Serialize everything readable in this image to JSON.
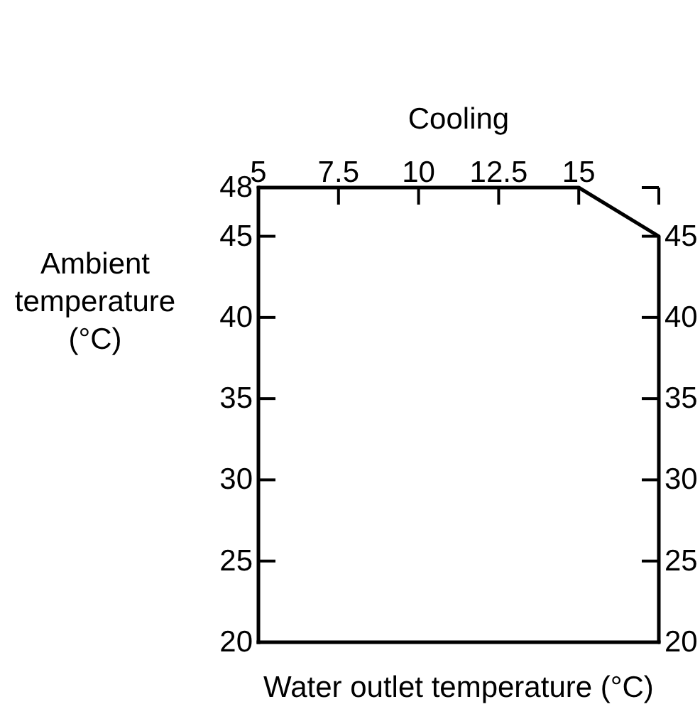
{
  "chart_data": {
    "type": "line",
    "title": "Cooling",
    "xlabel": "Water outlet temperature (°C)",
    "ylabel": "Ambient temperature (°C)",
    "x": [
      5,
      15,
      17.5,
      17.5
    ],
    "values": [
      48,
      48,
      45,
      20
    ],
    "color": "#000000",
    "line_style": "solid",
    "xlim": [
      5,
      17.5
    ],
    "xticks": [
      5,
      7.5,
      10,
      12.5,
      15,
      {
        "value": 17.5,
        "label": null
      }
    ],
    "ylim": [
      20,
      48
    ],
    "yticks": [
      20,
      25,
      30,
      35,
      40,
      45,
      48
    ],
    "y2lim": [
      20,
      48
    ],
    "y2ticks": [
      20,
      25,
      30,
      35,
      40,
      45,
      {
        "value": 48,
        "label": null
      }
    ]
  }
}
